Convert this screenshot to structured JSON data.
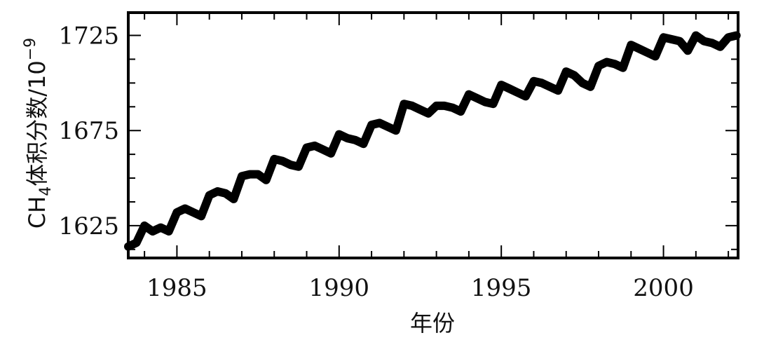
{
  "chart_data": {
    "type": "line",
    "title": "",
    "xlabel": "年份",
    "ylabel": {
      "prefix": "CH",
      "subscript": "4",
      "text": "体积分数/10",
      "superscript": "−9"
    },
    "xlim": [
      1983.5,
      2002.3
    ],
    "ylim": [
      1608,
      1737
    ],
    "x_ticks": [
      1985,
      1990,
      1995,
      2000
    ],
    "x_tick_labels": [
      "1985",
      "1990",
      "1995",
      "2000"
    ],
    "y_ticks": [
      1625,
      1675,
      1725
    ],
    "y_tick_labels": [
      "1625",
      "1675",
      "1725"
    ],
    "grid": false,
    "series": [
      {
        "x": [
          1983.5,
          1983.75,
          1984.0,
          1984.25,
          1984.5,
          1984.75,
          1985.0,
          1985.25,
          1985.5,
          1985.75,
          1986.0,
          1986.25,
          1986.5,
          1986.75,
          1987.0,
          1987.25,
          1987.5,
          1987.75,
          1988.0,
          1988.25,
          1988.5,
          1988.75,
          1989.0,
          1989.25,
          1989.5,
          1989.75,
          1990.0,
          1990.25,
          1990.5,
          1990.75,
          1991.0,
          1991.25,
          1991.5,
          1991.75,
          1992.0,
          1992.25,
          1992.5,
          1992.75,
          1993.0,
          1993.25,
          1993.5,
          1993.75,
          1994.0,
          1994.25,
          1994.5,
          1994.75,
          1995.0,
          1995.25,
          1995.5,
          1995.75,
          1996.0,
          1996.25,
          1996.5,
          1996.75,
          1997.0,
          1997.25,
          1997.5,
          1997.75,
          1998.0,
          1998.25,
          1998.5,
          1998.75,
          1999.0,
          1999.25,
          1999.5,
          1999.75,
          2000.0,
          2000.25,
          2000.5,
          2000.75,
          2001.0,
          2001.25,
          2001.5,
          2001.75,
          2002.0,
          2002.25
        ],
        "y": [
          1614,
          1616,
          1625,
          1622,
          1624,
          1622,
          1632,
          1634,
          1632,
          1630,
          1641,
          1643,
          1642,
          1639,
          1651,
          1652,
          1652,
          1649,
          1660,
          1659,
          1657,
          1656,
          1666,
          1667,
          1665,
          1663,
          1673,
          1671,
          1670,
          1668,
          1678,
          1679,
          1677,
          1675,
          1689,
          1688,
          1686,
          1684,
          1688,
          1688,
          1687,
          1685,
          1694,
          1692,
          1690,
          1689,
          1699,
          1697,
          1695,
          1693,
          1701,
          1700,
          1698,
          1696,
          1706,
          1704,
          1700,
          1698,
          1709,
          1711,
          1710,
          1708,
          1720,
          1718,
          1716,
          1714,
          1724,
          1723,
          1722,
          1717,
          1725,
          1722,
          1721,
          1719,
          1724,
          1725
        ]
      }
    ]
  }
}
